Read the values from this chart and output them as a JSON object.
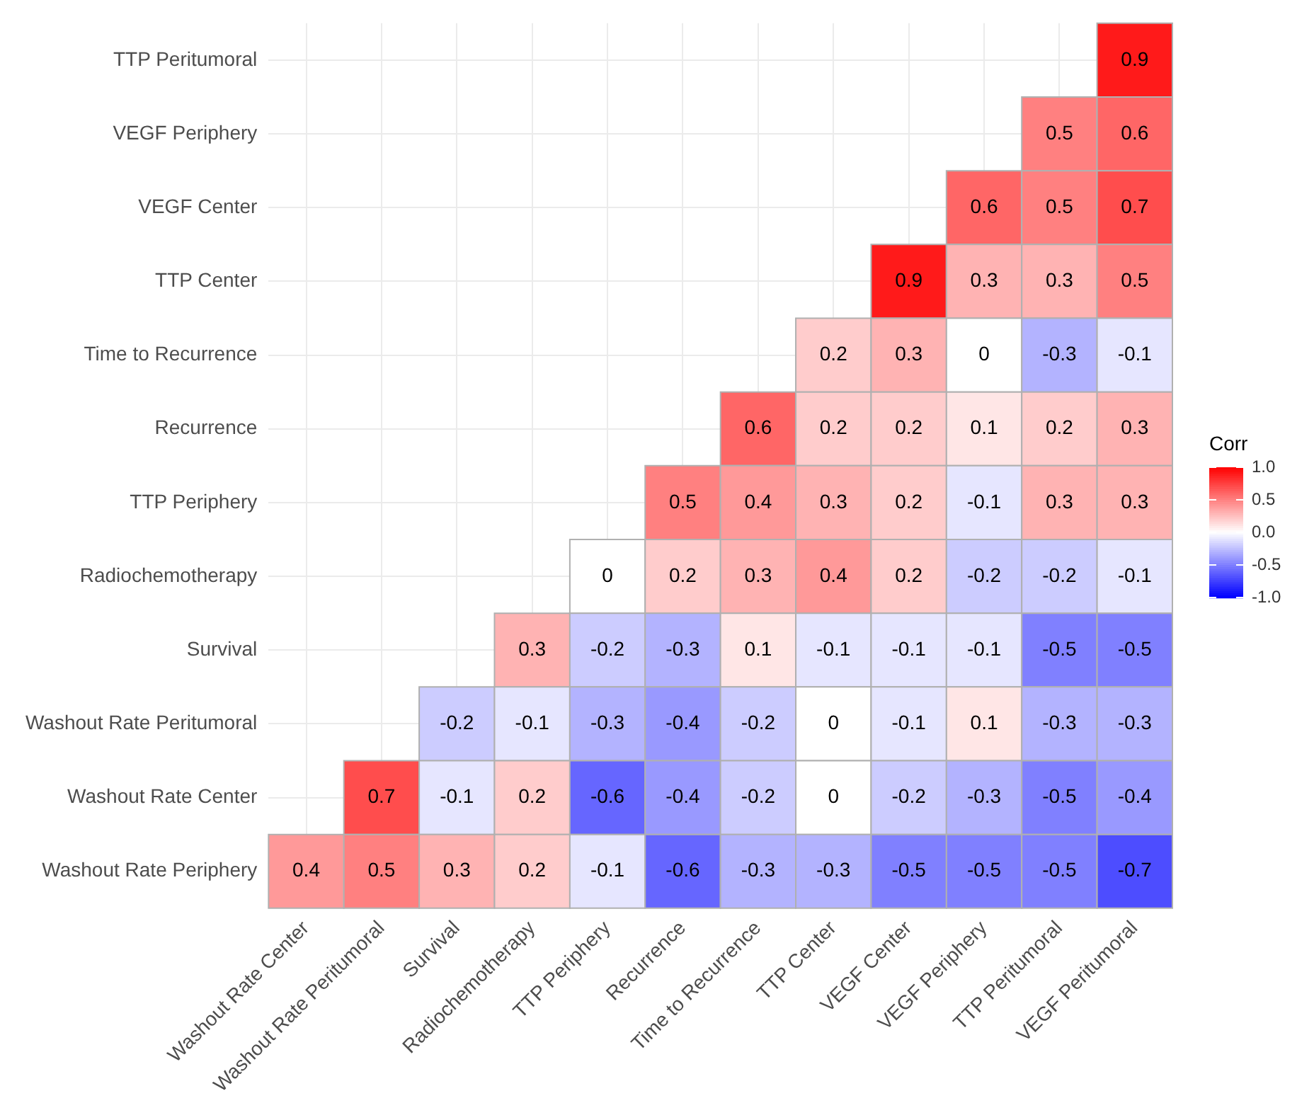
{
  "chart_data": {
    "type": "heatmap",
    "legend_title": "Corr",
    "grid": true,
    "data_labels": true,
    "categories": [
      "Washout Rate Center",
      "Washout Rate Peritumoral",
      "Survival",
      "Radiochemotherapy",
      "TTP Periphery",
      "Recurrence",
      "Time to Recurrence",
      "TTP Center",
      "VEGF Center",
      "VEGF Periphery",
      "TTP Peritumoral",
      "VEGF Peritumoral"
    ],
    "y_categories": [
      "TTP Peritumoral",
      "VEGF Periphery",
      "VEGF Center",
      "TTP Center",
      "Time to Recurrence",
      "Recurrence",
      "TTP Periphery",
      "Radiochemotherapy",
      "Survival",
      "Washout Rate Peritumoral",
      "Washout Rate Center",
      "Washout Rate Periphery"
    ],
    "cells": [
      [
        null,
        null,
        null,
        null,
        null,
        null,
        null,
        null,
        null,
        null,
        null,
        0.9
      ],
      [
        null,
        null,
        null,
        null,
        null,
        null,
        null,
        null,
        null,
        null,
        0.5,
        0.6
      ],
      [
        null,
        null,
        null,
        null,
        null,
        null,
        null,
        null,
        null,
        0.6,
        0.5,
        0.7
      ],
      [
        null,
        null,
        null,
        null,
        null,
        null,
        null,
        null,
        0.9,
        0.3,
        0.3,
        0.5
      ],
      [
        null,
        null,
        null,
        null,
        null,
        null,
        null,
        0.2,
        0.3,
        0,
        -0.3,
        -0.1
      ],
      [
        null,
        null,
        null,
        null,
        null,
        null,
        0.6,
        0.2,
        0.2,
        0.1,
        0.2,
        0.3
      ],
      [
        null,
        null,
        null,
        null,
        null,
        0.5,
        0.4,
        0.3,
        0.2,
        -0.1,
        0.3,
        0.3
      ],
      [
        null,
        null,
        null,
        null,
        0,
        0.2,
        0.3,
        0.4,
        0.2,
        -0.2,
        -0.2,
        -0.1
      ],
      [
        null,
        null,
        null,
        0.3,
        -0.2,
        -0.3,
        0.1,
        -0.1,
        -0.1,
        -0.1,
        -0.5,
        -0.5
      ],
      [
        null,
        null,
        -0.2,
        -0.1,
        -0.3,
        -0.4,
        -0.2,
        0,
        -0.1,
        0.1,
        -0.3,
        -0.3
      ],
      [
        null,
        0.7,
        -0.1,
        0.2,
        -0.6,
        -0.4,
        -0.2,
        0,
        -0.2,
        -0.3,
        -0.5,
        -0.4
      ],
      [
        0.4,
        0.5,
        0.3,
        0.2,
        -0.1,
        -0.6,
        -0.3,
        -0.3,
        -0.5,
        -0.5,
        -0.5,
        -0.7
      ]
    ],
    "clim": [
      -1,
      1
    ],
    "cticks": [
      {
        "value": 1,
        "label": "1.0"
      },
      {
        "value": 0.5,
        "label": "0.5"
      },
      {
        "value": 0,
        "label": "0.0"
      },
      {
        "value": -0.5,
        "label": "-0.5"
      },
      {
        "value": -1,
        "label": "-1.0"
      }
    ]
  }
}
